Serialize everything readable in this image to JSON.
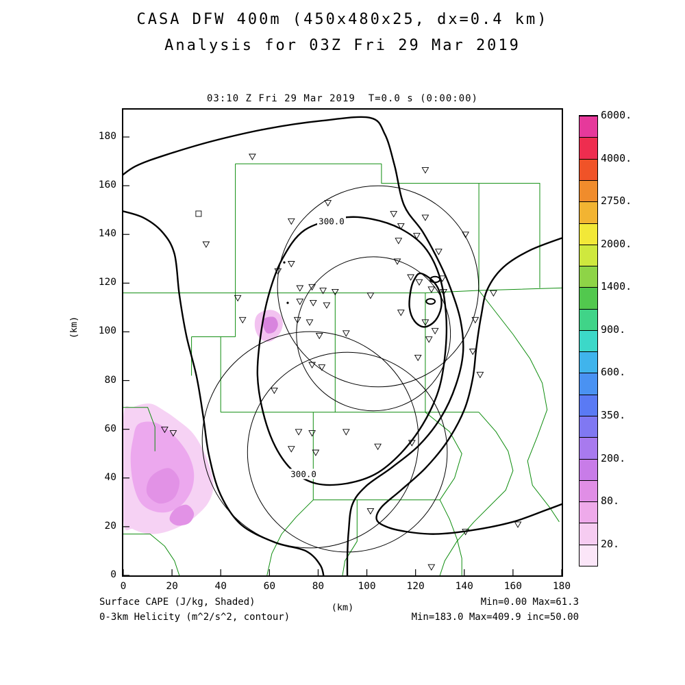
{
  "header": {
    "title_line1": "CASA DFW 400m (450x480x25, dx=0.4 km)",
    "title_line2": "Analysis for 03Z Fri 29 Mar 2019"
  },
  "plot": {
    "top_caption": "03:10 Z Fri 29 Mar 2019  T=0.0 s (0:00:00)",
    "x_axis": {
      "label": "(km)",
      "ticks": [
        0,
        20,
        40,
        60,
        80,
        100,
        120,
        140,
        160,
        180
      ]
    },
    "y_axis": {
      "label": "(km)",
      "ticks": [
        0,
        20,
        40,
        60,
        80,
        100,
        120,
        140,
        160,
        180
      ]
    }
  },
  "footer": {
    "left_line1": "Surface CAPE (J/kg, Shaded)",
    "left_line2": "0-3km Helicity (m^2/s^2, contour)",
    "right_line1": "Min=0.00 Max=61.3",
    "right_line2": "Min=183.0 Max=409.9 inc=50.00"
  },
  "chart_data": {
    "type": "map-contour",
    "title": "CASA DFW 400m (450x480x25, dx=0.4 km)",
    "subtitle": "Analysis for 03Z Fri 29 Mar 2019",
    "frame_time": "03:10 Z Fri 29 Mar 2019  T=0.0 s (0:00:00)",
    "domain_km": {
      "x": [
        0,
        180
      ],
      "y": [
        0,
        191.25
      ]
    },
    "shaded_field": {
      "name": "Surface CAPE",
      "units": "J/kg",
      "min": 0.0,
      "max": 61.3
    },
    "contour_field": {
      "name": "0-3km Helicity",
      "units": "m^2/s^2",
      "min": 183.0,
      "max": 409.9,
      "interval": 50.0,
      "labeled_value": 300.0
    },
    "colors": {
      "county": "#0d8c0d",
      "contour": "#000000",
      "ring": "#000000",
      "frame": "#000000"
    },
    "colorbar": {
      "tick_labels": [
        "20.",
        "80.",
        "200.",
        "350.",
        "600.",
        "900.",
        "1400.",
        "2000.",
        "2750.",
        "4000.",
        "6000."
      ],
      "colors": [
        "#fbe6f8",
        "#f6ccf1",
        "#eeaaea",
        "#e08ee6",
        "#c87ce8",
        "#a87aee",
        "#8078f2",
        "#5a7af4",
        "#4a92f2",
        "#40b4ec",
        "#3cd8c8",
        "#40d488",
        "#52c84e",
        "#8ed447",
        "#cfe83e",
        "#f2e838",
        "#f2b432",
        "#f08c2c",
        "#f05328",
        "#ee2d4f",
        "#e6399b"
      ]
    },
    "range_rings_km": [
      [
        104.6,
        118.7,
        41.3
      ],
      [
        102.7,
        99.2,
        31.6
      ],
      [
        76.8,
        55.7,
        44.4
      ],
      [
        92.0,
        50.6,
        41.0
      ]
    ],
    "stations_km": [
      [
        53,
        172
      ],
      [
        124,
        166.5
      ],
      [
        84,
        153
      ],
      [
        111,
        148.5
      ],
      [
        114,
        143.5
      ],
      [
        124,
        147
      ],
      [
        140.5,
        140
      ],
      [
        69,
        145.5
      ],
      [
        34,
        136
      ],
      [
        113,
        137.5
      ],
      [
        120.5,
        139.5
      ],
      [
        129.5,
        133
      ],
      [
        69,
        128
      ],
      [
        63.5,
        125
      ],
      [
        112.5,
        129
      ],
      [
        118,
        122.5
      ],
      [
        121.5,
        120.5
      ],
      [
        131,
        122
      ],
      [
        152,
        116
      ],
      [
        72.5,
        118
      ],
      [
        77.5,
        118.5
      ],
      [
        82,
        117
      ],
      [
        87,
        116.5
      ],
      [
        72.5,
        112.5
      ],
      [
        78,
        112
      ],
      [
        83.5,
        111
      ],
      [
        101.5,
        115
      ],
      [
        126.5,
        117.5
      ],
      [
        131.5,
        116.5
      ],
      [
        71.5,
        105
      ],
      [
        76.5,
        104
      ],
      [
        114,
        108
      ],
      [
        124,
        104
      ],
      [
        128,
        100.5
      ],
      [
        144.5,
        105
      ],
      [
        49,
        105
      ],
      [
        80.5,
        98.5
      ],
      [
        91.5,
        99.5
      ],
      [
        143.5,
        92
      ],
      [
        77.5,
        86.5
      ],
      [
        81.5,
        85.5
      ],
      [
        121,
        89.5
      ],
      [
        125.5,
        97
      ],
      [
        146.5,
        82.5
      ],
      [
        62,
        76
      ],
      [
        72,
        59
      ],
      [
        77.5,
        58.5
      ],
      [
        91.5,
        59
      ],
      [
        69,
        52
      ],
      [
        79,
        50.5
      ],
      [
        104.5,
        53
      ],
      [
        118.5,
        54.5
      ],
      [
        101.5,
        26.5
      ],
      [
        140.5,
        18
      ],
      [
        162,
        21
      ],
      [
        126.5,
        3.5
      ],
      [
        17,
        60
      ],
      [
        20.5,
        58.5
      ],
      [
        47,
        114
      ]
    ],
    "square_marker_km": [
      30.9,
      148.5
    ],
    "dot_markers_km": [
      [
        66.1,
        128.5
      ],
      [
        67.5,
        111.9
      ]
    ],
    "contour_labels": [
      {
        "text": "300.0",
        "x": 85.5,
        "y": 145.3
      },
      {
        "text": "300.0",
        "x": 74.0,
        "y": 41.5
      }
    ],
    "contours": [
      {
        "closed": false,
        "points_km": [
          [
            -2,
            163
          ],
          [
            5,
            168
          ],
          [
            17,
            172.5
          ],
          [
            36.6,
            178.3
          ],
          [
            59.1,
            183.4
          ],
          [
            81.6,
            186.7
          ],
          [
            101.3,
            187.9
          ],
          [
            107.4,
            181.1
          ],
          [
            111.4,
            168.2
          ],
          [
            115.3,
            151.9
          ],
          [
            123,
            141
          ],
          [
            130,
            128
          ],
          [
            134.5,
            117.5
          ],
          [
            138.5,
            104.5
          ],
          [
            139.5,
            91.5
          ],
          [
            136.5,
            78
          ],
          [
            130.5,
            65
          ],
          [
            121.5,
            53.5
          ],
          [
            110.5,
            44.5
          ],
          [
            99.5,
            36.5
          ],
          [
            94,
            29
          ],
          [
            92.5,
            18
          ],
          [
            92,
            8
          ],
          [
            92,
            -2
          ]
        ]
      },
      {
        "closed": false,
        "points_km": [
          [
            -2,
            150
          ],
          [
            8,
            147
          ],
          [
            16,
            141
          ],
          [
            21,
            132
          ],
          [
            23,
            115.3
          ],
          [
            25.9,
            98.4
          ],
          [
            30.1,
            81.6
          ],
          [
            32.9,
            64.7
          ],
          [
            35.2,
            49.2
          ],
          [
            39.9,
            33.2
          ],
          [
            48.4,
            20.8
          ],
          [
            62.4,
            13.5
          ],
          [
            75,
            10
          ],
          [
            81,
            4
          ],
          [
            82.5,
            -2
          ]
        ]
      },
      {
        "closed": true,
        "value": 300,
        "points_km": [
          [
            90,
            146.8
          ],
          [
            74.5,
            141.8
          ],
          [
            65.3,
            130
          ],
          [
            59.6,
            114.8
          ],
          [
            56.3,
            97.9
          ],
          [
            55.1,
            82.1
          ],
          [
            57.4,
            66.9
          ],
          [
            62.4,
            52.9
          ],
          [
            69.8,
            42.8
          ],
          [
            79.3,
            37.7
          ],
          [
            91.4,
            37.7
          ],
          [
            103.5,
            41.6
          ],
          [
            113.9,
            50.1
          ],
          [
            122.9,
            61.9
          ],
          [
            129.4,
            75.9
          ],
          [
            132.2,
            91.4
          ],
          [
            132.5,
            107.4
          ],
          [
            129.7,
            123.2
          ],
          [
            123.5,
            135
          ],
          [
            113.9,
            142.3
          ],
          [
            102.1,
            146.3
          ]
        ]
      },
      {
        "closed": false,
        "points_km": [
          [
            182,
            139.2
          ],
          [
            167,
            133.5
          ],
          [
            156,
            126.5
          ],
          [
            149.5,
            117.5
          ],
          [
            147,
            107
          ],
          [
            145,
            94
          ],
          [
            143.5,
            81
          ],
          [
            140,
            68
          ],
          [
            133,
            55
          ],
          [
            124,
            44
          ],
          [
            114,
            35
          ],
          [
            106,
            28
          ],
          [
            104,
            23
          ],
          [
            108,
            20
          ],
          [
            116,
            18
          ],
          [
            128,
            17
          ],
          [
            143,
            18.5
          ],
          [
            160,
            22
          ],
          [
            174,
            27
          ],
          [
            182,
            30
          ]
        ]
      },
      {
        "closed": true,
        "points_km": [
          [
            122,
            124
          ],
          [
            127,
            121
          ],
          [
            130,
            116
          ],
          [
            130.5,
            110
          ],
          [
            128,
            104.5
          ],
          [
            123.5,
            102
          ],
          [
            119.5,
            104.5
          ],
          [
            117.5,
            110
          ],
          [
            118,
            117
          ],
          [
            119.5,
            121.5
          ]
        ]
      }
    ],
    "contour_ellipses": [
      [
        128,
        121.5,
        2,
        1.2
      ],
      [
        126.2,
        112.5,
        1.8,
        1.1
      ]
    ],
    "cape_regions": [
      {
        "name": "sw-outer",
        "color": "#f6d2f4",
        "points_km": [
          [
            0,
            65
          ],
          [
            4,
            69
          ],
          [
            11,
            70.5
          ],
          [
            17,
            67.5
          ],
          [
            22,
            64
          ],
          [
            28,
            59
          ],
          [
            32,
            53
          ],
          [
            35,
            46
          ],
          [
            37,
            37
          ],
          [
            35,
            30
          ],
          [
            30,
            24.5
          ],
          [
            25,
            21
          ],
          [
            18,
            18
          ],
          [
            11,
            17
          ],
          [
            4,
            19
          ],
          [
            0,
            23
          ]
        ]
      },
      {
        "name": "sw-mid",
        "color": "#eca8ee",
        "points_km": [
          [
            6,
            62
          ],
          [
            12,
            63
          ],
          [
            18,
            60
          ],
          [
            23,
            55
          ],
          [
            27,
            49
          ],
          [
            29,
            42
          ],
          [
            28,
            35
          ],
          [
            24,
            29
          ],
          [
            18,
            26
          ],
          [
            12,
            26.5
          ],
          [
            7,
            30
          ],
          [
            4,
            38
          ],
          [
            3,
            48
          ],
          [
            4,
            56
          ]
        ]
      },
      {
        "name": "sw-core-1",
        "color": "#e292e6",
        "points_km": [
          [
            13,
            42
          ],
          [
            19,
            44
          ],
          [
            23,
            39
          ],
          [
            21,
            32
          ],
          [
            15,
            29.5
          ],
          [
            10,
            33
          ],
          [
            10,
            38
          ]
        ]
      },
      {
        "name": "sw-core-2",
        "color": "#e292e6",
        "points_km": [
          [
            21,
            27
          ],
          [
            26,
            29
          ],
          [
            29,
            25.5
          ],
          [
            27,
            21.5
          ],
          [
            22,
            20.5
          ],
          [
            19,
            23
          ]
        ]
      },
      {
        "name": "central-outer",
        "color": "#f2c2f0",
        "points_km": [
          [
            55,
            107
          ],
          [
            60,
            109
          ],
          [
            64,
            107.5
          ],
          [
            65.5,
            103.5
          ],
          [
            64,
            99
          ],
          [
            60,
            96
          ],
          [
            56,
            97.5
          ],
          [
            54,
            102
          ]
        ]
      },
      {
        "name": "central-core",
        "color": "#d884de",
        "points_km": [
          [
            58,
            105.5
          ],
          [
            62,
            106
          ],
          [
            63.5,
            103
          ],
          [
            62,
            100
          ],
          [
            59,
            99.5
          ],
          [
            57.5,
            102.5
          ]
        ]
      }
    ],
    "county_lines_km": [
      [
        [
          46,
          169
        ],
        [
          106,
          169
        ]
      ],
      [
        [
          106,
          169
        ],
        [
          106,
          161
        ],
        [
          146,
          161
        ]
      ],
      [
        [
          146,
          161
        ],
        [
          171,
          161
        ],
        [
          171,
          118
        ]
      ],
      [
        [
          46,
          169
        ],
        [
          46,
          116
        ]
      ],
      [
        [
          146,
          161
        ],
        [
          146,
          117
        ]
      ],
      [
        [
          0,
          116
        ],
        [
          87,
          116
        ]
      ],
      [
        [
          87,
          116
        ],
        [
          124,
          116
        ]
      ],
      [
        [
          124,
          116
        ],
        [
          146,
          117
        ],
        [
          180,
          118
        ]
      ],
      [
        [
          87,
          116
        ],
        [
          87,
          67
        ]
      ],
      [
        [
          124,
          116
        ],
        [
          124,
          67
        ]
      ],
      [
        [
          46,
          116
        ],
        [
          46,
          98
        ]
      ],
      [
        [
          40,
          98
        ],
        [
          40,
          67
        ]
      ],
      [
        [
          28,
          98
        ],
        [
          46,
          98
        ]
      ],
      [
        [
          28,
          98
        ],
        [
          28,
          82
        ]
      ],
      [
        [
          40,
          67
        ],
        [
          146,
          67
        ]
      ],
      [
        [
          78,
          67
        ],
        [
          78,
          31
        ]
      ],
      [
        [
          78,
          31
        ],
        [
          130,
          31
        ]
      ],
      [
        [
          130,
          31
        ],
        [
          136,
          40
        ],
        [
          139,
          50
        ],
        [
          134,
          59
        ],
        [
          124,
          67
        ]
      ],
      [
        [
          146,
          117
        ],
        [
          153,
          108
        ],
        [
          160,
          99
        ],
        [
          167,
          89
        ],
        [
          172,
          79
        ],
        [
          174,
          68
        ],
        [
          170,
          57
        ],
        [
          166,
          47
        ],
        [
          168,
          37
        ],
        [
          175,
          28
        ],
        [
          179,
          22
        ]
      ],
      [
        [
          146,
          67
        ],
        [
          153,
          59
        ],
        [
          158,
          51
        ],
        [
          160,
          43
        ],
        [
          157,
          35
        ],
        [
          151,
          29
        ],
        [
          144,
          22
        ],
        [
          137,
          14
        ],
        [
          132,
          6
        ],
        [
          130,
          0
        ]
      ],
      [
        [
          78,
          31
        ],
        [
          71,
          24
        ],
        [
          65,
          17
        ],
        [
          61,
          9
        ],
        [
          59,
          0
        ]
      ],
      [
        [
          130,
          31
        ],
        [
          134,
          23
        ],
        [
          137,
          15
        ],
        [
          139,
          7
        ],
        [
          139,
          0
        ]
      ],
      [
        [
          96,
          31
        ],
        [
          96,
          14
        ],
        [
          91,
          6
        ],
        [
          90,
          0
        ]
      ],
      [
        [
          0,
          69
        ],
        [
          10,
          69
        ],
        [
          13,
          61
        ],
        [
          13,
          51
        ]
      ],
      [
        [
          0,
          17
        ],
        [
          11,
          17
        ],
        [
          17,
          12
        ],
        [
          21,
          6
        ],
        [
          23,
          0
        ]
      ]
    ]
  }
}
